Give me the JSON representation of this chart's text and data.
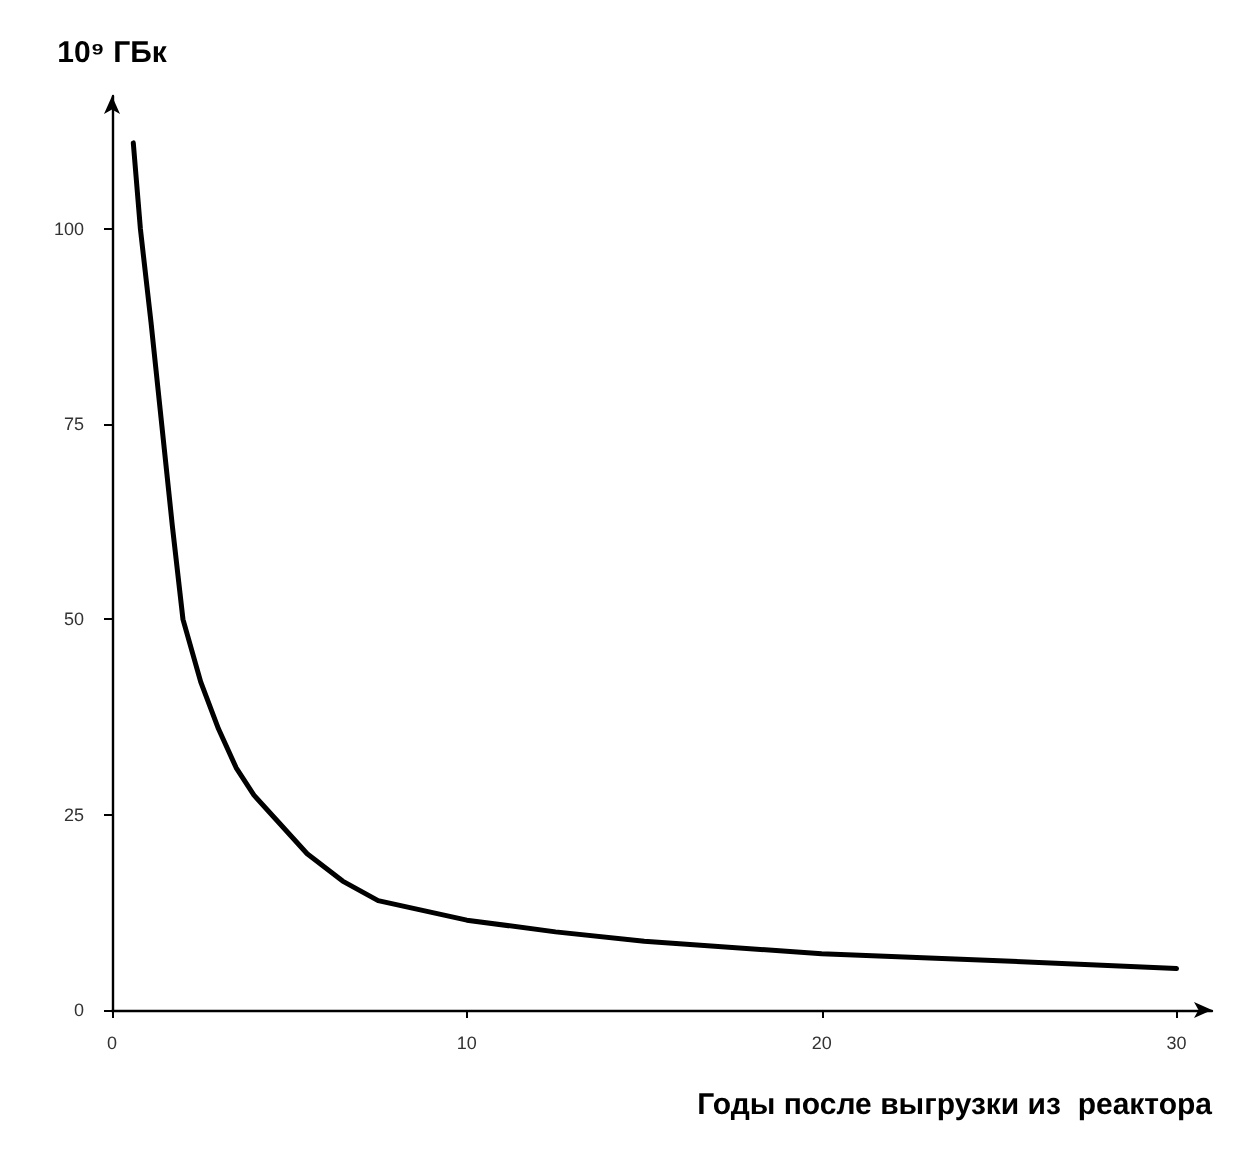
{
  "chart_data": {
    "type": "line",
    "xlabel": "Годы после выгрузки из  реактора",
    "ylabel": "10⁹ ГБк",
    "x": [
      0.6,
      0.8,
      1.1,
      1.4,
      1.7,
      2,
      2.5,
      3,
      3.5,
      4,
      4.7,
      5.5,
      6.5,
      7.5,
      10,
      12.5,
      15,
      20,
      25,
      30
    ],
    "series": [
      {
        "color": "#000000",
        "values": [
          111,
          100,
          88,
          75,
          62,
          50,
          42,
          36,
          31,
          27.5,
          24,
          20,
          16.5,
          14,
          11.5,
          10,
          8.8,
          7.2,
          6.3,
          5.3
        ]
      }
    ],
    "xlim": [
      0,
      31
    ],
    "xticks": [
      0,
      10,
      20,
      30
    ],
    "ylim": [
      0,
      117
    ],
    "yticks": [
      0,
      25,
      50,
      75,
      100
    ],
    "grid": false,
    "marker": "none",
    "line_style": "solid"
  }
}
